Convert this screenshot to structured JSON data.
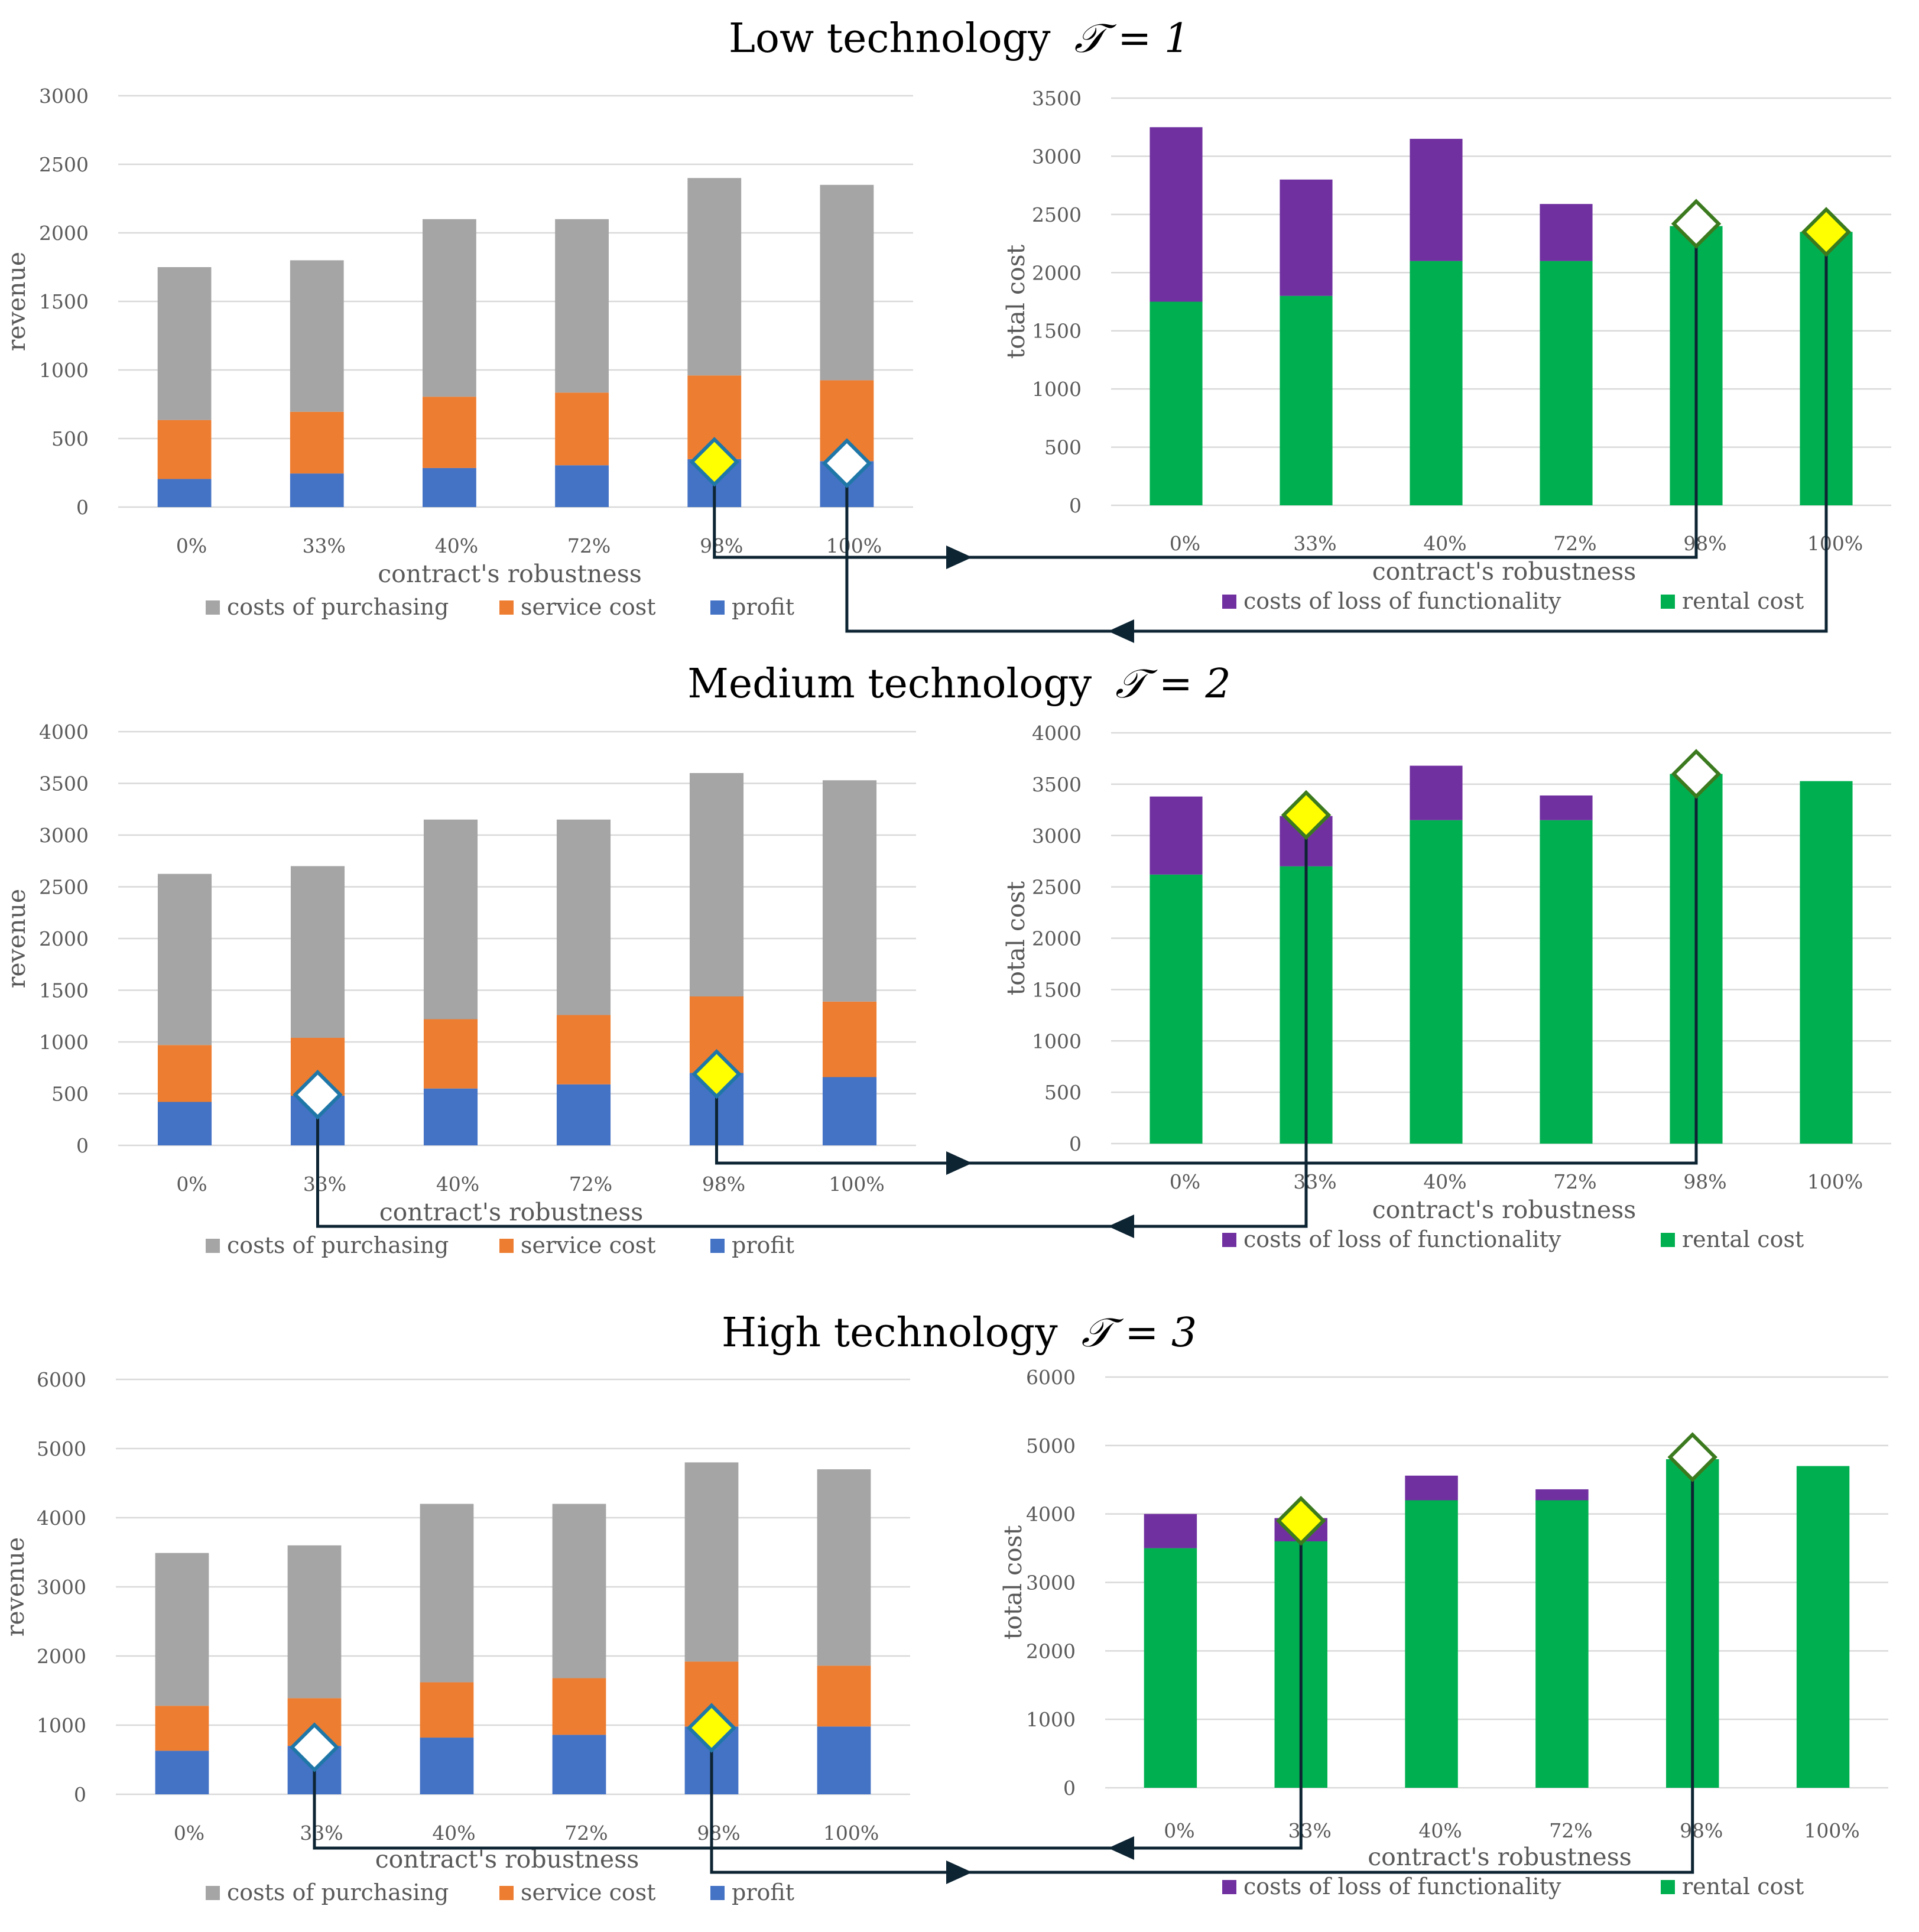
{
  "chart_data": {
    "type": "bar",
    "stacked": true,
    "categories": [
      "0%",
      "33%",
      "40%",
      "72%",
      "98%",
      "100%"
    ],
    "xlabel": "contract's robustness",
    "colors": {
      "costs_of_purchasing": "#a5a5a5",
      "service_cost": "#ed7d31",
      "profit": "#4472c4",
      "costs_of_loss_of_functionality": "#7030a0",
      "rental_cost": "#00b050",
      "yellow_marker": "#ffff00",
      "white_marker": "#ffffff",
      "marker_stroke_left": "#1f77a8",
      "marker_stroke_right": "#3b7a1e",
      "connector": "#0d2433"
    },
    "panels": [
      {
        "title": "Low technology",
        "symbol": "𝒯 = 1",
        "revenue": {
          "ylabel": "revenue",
          "ylim": [
            0,
            3000
          ],
          "yticks": [
            "0",
            "500",
            "1000",
            "1500",
            "2000",
            "2500",
            "3000"
          ],
          "grid": true,
          "legend": [
            "costs of purchasing",
            "service cost",
            "profit"
          ],
          "series": [
            {
              "name": "profit",
              "values": [
                205,
                245,
                285,
                305,
                350,
                335
              ]
            },
            {
              "name": "service cost",
              "values": [
                430,
                450,
                520,
                530,
                610,
                590
              ]
            },
            {
              "name": "costs of purchasing",
              "values": [
                1115,
                1105,
                1295,
                1265,
                1440,
                1425
              ]
            }
          ],
          "markers": [
            {
              "category": "98%",
              "value": 330,
              "fill": "yellow"
            },
            {
              "category": "100%",
              "value": 320,
              "fill": "white"
            }
          ]
        },
        "cost": {
          "ylabel": "total cost",
          "ylim": [
            0,
            3500
          ],
          "yticks": [
            "0",
            "500",
            "1000",
            "1500",
            "2000",
            "2500",
            "3000",
            "3500"
          ],
          "grid": true,
          "legend": [
            "costs of loss of functionality",
            "rental cost"
          ],
          "series": [
            {
              "name": "rental cost",
              "values": [
                1750,
                1800,
                2100,
                2100,
                2400,
                2350
              ]
            },
            {
              "name": "costs of loss of functionality",
              "values": [
                1500,
                1000,
                1050,
                490,
                0,
                0
              ]
            }
          ],
          "markers": [
            {
              "category": "98%",
              "value": 2420,
              "fill": "white"
            },
            {
              "category": "100%",
              "value": 2350,
              "fill": "yellow"
            }
          ]
        },
        "links": [
          {
            "from": "revenue",
            "fromCategory": "98%",
            "to": "cost",
            "toCategory": "98%"
          },
          {
            "from": "cost",
            "fromCategory": "100%",
            "to": "revenue",
            "toCategory": "100%"
          }
        ]
      },
      {
        "title": "Medium technology",
        "symbol": "𝒯 = 2",
        "revenue": {
          "ylabel": "revenue",
          "ylim": [
            0,
            4000
          ],
          "yticks": [
            "0",
            "500",
            "1000",
            "1500",
            "2000",
            "2500",
            "3000",
            "3500",
            "4000"
          ],
          "grid": true,
          "legend": [
            "costs of purchasing",
            "service cost",
            "profit"
          ],
          "series": [
            {
              "name": "profit",
              "values": [
                420,
                480,
                550,
                590,
                700,
                660
              ]
            },
            {
              "name": "service cost",
              "values": [
                550,
                560,
                670,
                670,
                740,
                730
              ]
            },
            {
              "name": "costs of purchasing",
              "values": [
                1655,
                1660,
                1930,
                1890,
                2160,
                2140
              ]
            }
          ],
          "markers": [
            {
              "category": "33%",
              "value": 490,
              "fill": "white"
            },
            {
              "category": "98%",
              "value": 690,
              "fill": "yellow"
            }
          ]
        },
        "cost": {
          "ylabel": "total cost",
          "ylim": [
            0,
            4000
          ],
          "yticks": [
            "0",
            "500",
            "1000",
            "1500",
            "2000",
            "2500",
            "3000",
            "3500",
            "4000"
          ],
          "grid": true,
          "legend": [
            "costs of loss of functionality",
            "rental cost"
          ],
          "series": [
            {
              "name": "rental cost",
              "values": [
                2620,
                2700,
                3150,
                3150,
                3600,
                3530
              ]
            },
            {
              "name": "costs of loss of functionality",
              "values": [
                760,
                490,
                530,
                240,
                0,
                0
              ]
            }
          ],
          "markers": [
            {
              "category": "33%",
              "value": 3200,
              "fill": "yellow"
            },
            {
              "category": "98%",
              "value": 3600,
              "fill": "white"
            }
          ]
        },
        "links": [
          {
            "from": "revenue",
            "fromCategory": "98%",
            "to": "cost",
            "toCategory": "98%"
          },
          {
            "from": "cost",
            "fromCategory": "33%",
            "to": "revenue",
            "toCategory": "33%"
          }
        ]
      },
      {
        "title": "High technology",
        "symbol": "𝒯 = 3",
        "revenue": {
          "ylabel": "revenue",
          "ylim": [
            0,
            6000
          ],
          "yticks": [
            "0",
            "1000",
            "2000",
            "3000",
            "4000",
            "5000",
            "6000"
          ],
          "grid": true,
          "legend": [
            "costs of purchasing",
            "service cost",
            "profit"
          ],
          "series": [
            {
              "name": "profit",
              "values": [
                630,
                700,
                820,
                860,
                980,
                980
              ]
            },
            {
              "name": "service cost",
              "values": [
                650,
                690,
                800,
                820,
                940,
                880
              ]
            },
            {
              "name": "costs of purchasing",
              "values": [
                2210,
                2210,
                2580,
                2520,
                2880,
                2840
              ]
            }
          ],
          "markers": [
            {
              "category": "33%",
              "value": 680,
              "fill": "white"
            },
            {
              "category": "98%",
              "value": 960,
              "fill": "yellow"
            }
          ]
        },
        "cost": {
          "ylabel": "total cost",
          "ylim": [
            0,
            6000
          ],
          "yticks": [
            "0",
            "1000",
            "2000",
            "3000",
            "4000",
            "5000",
            "6000"
          ],
          "grid": true,
          "legend": [
            "costs of loss of functionality",
            "rental cost"
          ],
          "series": [
            {
              "name": "rental cost",
              "values": [
                3500,
                3600,
                4200,
                4200,
                4800,
                4700
              ]
            },
            {
              "name": "costs of loss of functionality",
              "values": [
                500,
                340,
                360,
                160,
                0,
                0
              ]
            }
          ],
          "markers": [
            {
              "category": "33%",
              "value": 3900,
              "fill": "yellow"
            },
            {
              "category": "98%",
              "value": 4830,
              "fill": "white"
            }
          ]
        },
        "links": [
          {
            "from": "cost",
            "fromCategory": "33%",
            "to": "revenue",
            "toCategory": "33%"
          },
          {
            "from": "revenue",
            "fromCategory": "98%",
            "to": "cost",
            "toCategory": "98%"
          }
        ]
      }
    ]
  }
}
